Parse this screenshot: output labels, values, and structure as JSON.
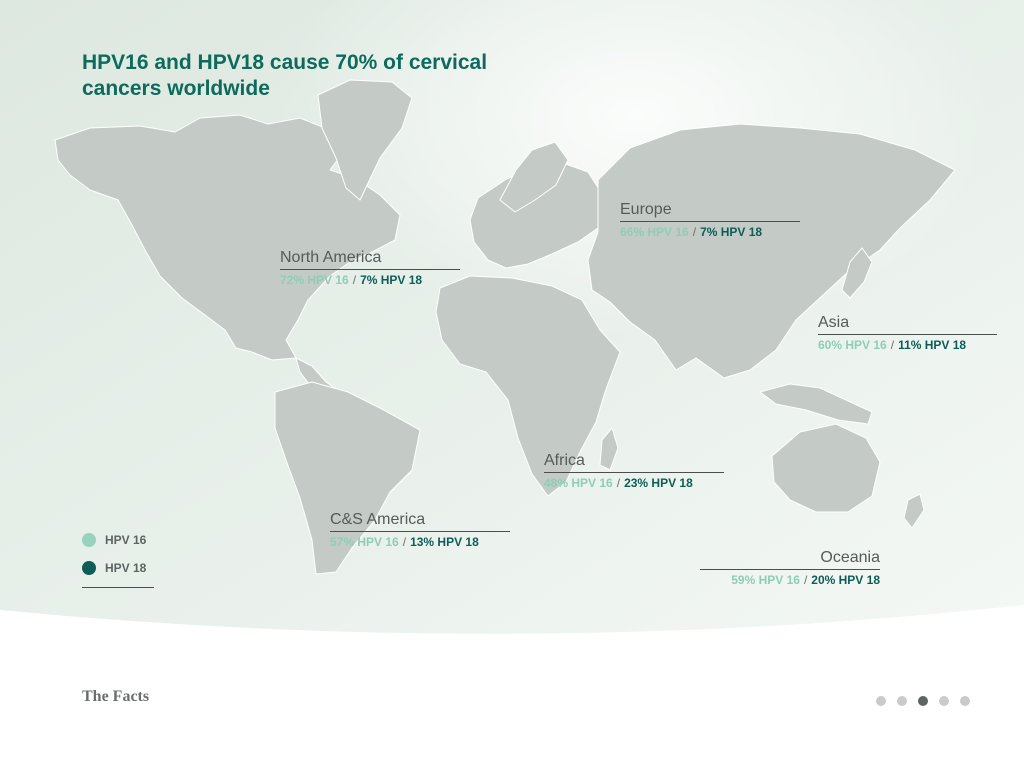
{
  "title": "HPV16 and HPV18 cause 70% of cervical cancers worldwide",
  "colors": {
    "hpv16": "#9ad3bd",
    "hpv18": "#0f5c56",
    "land": "#c4cbc6",
    "title": "#0d6b5c"
  },
  "regions": [
    {
      "name": "North America",
      "hpv16": "72% HPV 16",
      "hpv18": "7% HPV 18"
    },
    {
      "name": "Europe",
      "hpv16": "66% HPV 16",
      "hpv18": "7% HPV 18"
    },
    {
      "name": "Asia",
      "hpv16": "60% HPV 16",
      "hpv18": "11% HPV 18"
    },
    {
      "name": "Africa",
      "hpv16": "48% HPV 16",
      "hpv18": "23% HPV 18"
    },
    {
      "name": "C&S America",
      "hpv16": "57% HPV 16",
      "hpv18": "13% HPV 18"
    },
    {
      "name": "Oceania",
      "hpv16": "59% HPV 16",
      "hpv18": "20% HPV 18"
    }
  ],
  "separator": "/",
  "legend": {
    "hpv16": "HPV 16",
    "hpv18": "HPV 18"
  },
  "footer": {
    "title": "The Facts"
  },
  "pagination": {
    "total": 5,
    "current": 3
  }
}
